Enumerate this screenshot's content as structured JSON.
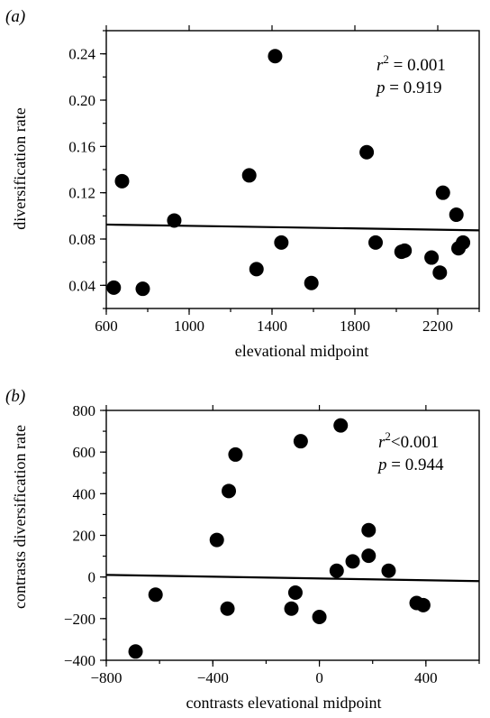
{
  "chart_data": [
    {
      "type": "scatter",
      "panel_label": "(a)",
      "panel_letter": "a",
      "xlabel": "elevational midpoint",
      "ylabel": "diversification rate",
      "xlim": [
        600,
        2400
      ],
      "ylim": [
        0.02,
        0.26
      ],
      "x_ticks": [
        600,
        1000,
        1400,
        1800,
        2200
      ],
      "x_tick_labels": [
        "600",
        "1000",
        "1400",
        "1800",
        "2200"
      ],
      "y_ticks": [
        0.04,
        0.08,
        0.12,
        0.16,
        0.2,
        0.24
      ],
      "y_tick_labels": [
        "0.04",
        "0.08",
        "0.12",
        "0.16",
        "0.20",
        "0.24"
      ],
      "points": [
        [
          636,
          0.038
        ],
        [
          676,
          0.13
        ],
        [
          776,
          0.037
        ],
        [
          928,
          0.096
        ],
        [
          1290,
          0.135
        ],
        [
          1325,
          0.054
        ],
        [
          1415,
          0.238
        ],
        [
          1445,
          0.077
        ],
        [
          1590,
          0.042
        ],
        [
          1857,
          0.155
        ],
        [
          1900,
          0.077
        ],
        [
          2025,
          0.069
        ],
        [
          2040,
          0.07
        ],
        [
          2170,
          0.064
        ],
        [
          2210,
          0.051
        ],
        [
          2225,
          0.12
        ],
        [
          2290,
          0.101
        ],
        [
          2300,
          0.072
        ],
        [
          2322,
          0.077
        ]
      ],
      "fit_line": [
        [
          600,
          0.0925
        ],
        [
          2400,
          0.0875
        ]
      ],
      "stats": {
        "r_symbol": "r",
        "r_exp": "2",
        "r_rel": " = 0.001",
        "p_symbol": "p",
        "p_rel": " = 0.919"
      }
    },
    {
      "type": "scatter",
      "panel_label": "(b)",
      "panel_letter": "b",
      "xlabel": "contrasts elevational midpoint",
      "ylabel": "contrasts diversification rate",
      "xlim": [
        -800,
        600
      ],
      "ylim": [
        -400,
        800
      ],
      "x_ticks": [
        -800,
        -400,
        0,
        400
      ],
      "x_tick_labels": [
        "−800",
        "−400",
        "0",
        "400"
      ],
      "y_ticks": [
        -400,
        -200,
        0,
        200,
        400,
        600,
        800
      ],
      "y_tick_labels": [
        "−400",
        "−200",
        "0",
        "200",
        "400",
        "600",
        "800"
      ],
      "points": [
        [
          -690,
          -358
        ],
        [
          -615,
          -85
        ],
        [
          -385,
          178
        ],
        [
          -345,
          -152
        ],
        [
          -340,
          413
        ],
        [
          -315,
          588
        ],
        [
          -105,
          -152
        ],
        [
          -90,
          -75
        ],
        [
          -70,
          652
        ],
        [
          0,
          -192
        ],
        [
          65,
          30
        ],
        [
          80,
          728
        ],
        [
          125,
          75
        ],
        [
          185,
          225
        ],
        [
          185,
          102
        ],
        [
          260,
          30
        ],
        [
          365,
          -125
        ],
        [
          390,
          -135
        ]
      ],
      "fit_line": [
        [
          -800,
          10
        ],
        [
          600,
          -20
        ]
      ],
      "stats": {
        "r_symbol": "r",
        "r_exp": "2",
        "r_rel": "<0.001",
        "p_symbol": "p",
        "p_rel": " = 0.944"
      }
    }
  ]
}
